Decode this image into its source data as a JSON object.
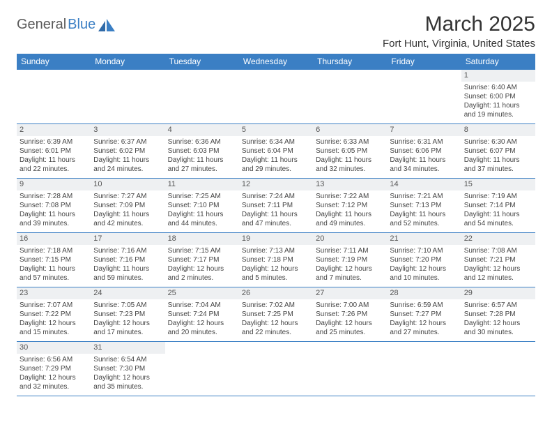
{
  "logo": {
    "first": "General",
    "second": "Blue"
  },
  "title": "March 2025",
  "location": "Fort Hunt, Virginia, United States",
  "colors": {
    "header_bg": "#3b7fc4",
    "header_fg": "#ffffff",
    "daynum_bg": "#eef0f2",
    "border": "#3b7fc4",
    "text": "#333333"
  },
  "weekdays": [
    "Sunday",
    "Monday",
    "Tuesday",
    "Wednesday",
    "Thursday",
    "Friday",
    "Saturday"
  ],
  "labels": {
    "sunrise": "Sunrise:",
    "sunset": "Sunset:",
    "daylight": "Daylight:"
  },
  "weeks": [
    [
      null,
      null,
      null,
      null,
      null,
      null,
      {
        "d": "1",
        "sunrise": "6:40 AM",
        "sunset": "6:00 PM",
        "daylight": "11 hours and 19 minutes."
      }
    ],
    [
      {
        "d": "2",
        "sunrise": "6:39 AM",
        "sunset": "6:01 PM",
        "daylight": "11 hours and 22 minutes."
      },
      {
        "d": "3",
        "sunrise": "6:37 AM",
        "sunset": "6:02 PM",
        "daylight": "11 hours and 24 minutes."
      },
      {
        "d": "4",
        "sunrise": "6:36 AM",
        "sunset": "6:03 PM",
        "daylight": "11 hours and 27 minutes."
      },
      {
        "d": "5",
        "sunrise": "6:34 AM",
        "sunset": "6:04 PM",
        "daylight": "11 hours and 29 minutes."
      },
      {
        "d": "6",
        "sunrise": "6:33 AM",
        "sunset": "6:05 PM",
        "daylight": "11 hours and 32 minutes."
      },
      {
        "d": "7",
        "sunrise": "6:31 AM",
        "sunset": "6:06 PM",
        "daylight": "11 hours and 34 minutes."
      },
      {
        "d": "8",
        "sunrise": "6:30 AM",
        "sunset": "6:07 PM",
        "daylight": "11 hours and 37 minutes."
      }
    ],
    [
      {
        "d": "9",
        "sunrise": "7:28 AM",
        "sunset": "7:08 PM",
        "daylight": "11 hours and 39 minutes."
      },
      {
        "d": "10",
        "sunrise": "7:27 AM",
        "sunset": "7:09 PM",
        "daylight": "11 hours and 42 minutes."
      },
      {
        "d": "11",
        "sunrise": "7:25 AM",
        "sunset": "7:10 PM",
        "daylight": "11 hours and 44 minutes."
      },
      {
        "d": "12",
        "sunrise": "7:24 AM",
        "sunset": "7:11 PM",
        "daylight": "11 hours and 47 minutes."
      },
      {
        "d": "13",
        "sunrise": "7:22 AM",
        "sunset": "7:12 PM",
        "daylight": "11 hours and 49 minutes."
      },
      {
        "d": "14",
        "sunrise": "7:21 AM",
        "sunset": "7:13 PM",
        "daylight": "11 hours and 52 minutes."
      },
      {
        "d": "15",
        "sunrise": "7:19 AM",
        "sunset": "7:14 PM",
        "daylight": "11 hours and 54 minutes."
      }
    ],
    [
      {
        "d": "16",
        "sunrise": "7:18 AM",
        "sunset": "7:15 PM",
        "daylight": "11 hours and 57 minutes."
      },
      {
        "d": "17",
        "sunrise": "7:16 AM",
        "sunset": "7:16 PM",
        "daylight": "11 hours and 59 minutes."
      },
      {
        "d": "18",
        "sunrise": "7:15 AM",
        "sunset": "7:17 PM",
        "daylight": "12 hours and 2 minutes."
      },
      {
        "d": "19",
        "sunrise": "7:13 AM",
        "sunset": "7:18 PM",
        "daylight": "12 hours and 5 minutes."
      },
      {
        "d": "20",
        "sunrise": "7:11 AM",
        "sunset": "7:19 PM",
        "daylight": "12 hours and 7 minutes."
      },
      {
        "d": "21",
        "sunrise": "7:10 AM",
        "sunset": "7:20 PM",
        "daylight": "12 hours and 10 minutes."
      },
      {
        "d": "22",
        "sunrise": "7:08 AM",
        "sunset": "7:21 PM",
        "daylight": "12 hours and 12 minutes."
      }
    ],
    [
      {
        "d": "23",
        "sunrise": "7:07 AM",
        "sunset": "7:22 PM",
        "daylight": "12 hours and 15 minutes."
      },
      {
        "d": "24",
        "sunrise": "7:05 AM",
        "sunset": "7:23 PM",
        "daylight": "12 hours and 17 minutes."
      },
      {
        "d": "25",
        "sunrise": "7:04 AM",
        "sunset": "7:24 PM",
        "daylight": "12 hours and 20 minutes."
      },
      {
        "d": "26",
        "sunrise": "7:02 AM",
        "sunset": "7:25 PM",
        "daylight": "12 hours and 22 minutes."
      },
      {
        "d": "27",
        "sunrise": "7:00 AM",
        "sunset": "7:26 PM",
        "daylight": "12 hours and 25 minutes."
      },
      {
        "d": "28",
        "sunrise": "6:59 AM",
        "sunset": "7:27 PM",
        "daylight": "12 hours and 27 minutes."
      },
      {
        "d": "29",
        "sunrise": "6:57 AM",
        "sunset": "7:28 PM",
        "daylight": "12 hours and 30 minutes."
      }
    ],
    [
      {
        "d": "30",
        "sunrise": "6:56 AM",
        "sunset": "7:29 PM",
        "daylight": "12 hours and 32 minutes."
      },
      {
        "d": "31",
        "sunrise": "6:54 AM",
        "sunset": "7:30 PM",
        "daylight": "12 hours and 35 minutes."
      },
      null,
      null,
      null,
      null,
      null
    ]
  ]
}
